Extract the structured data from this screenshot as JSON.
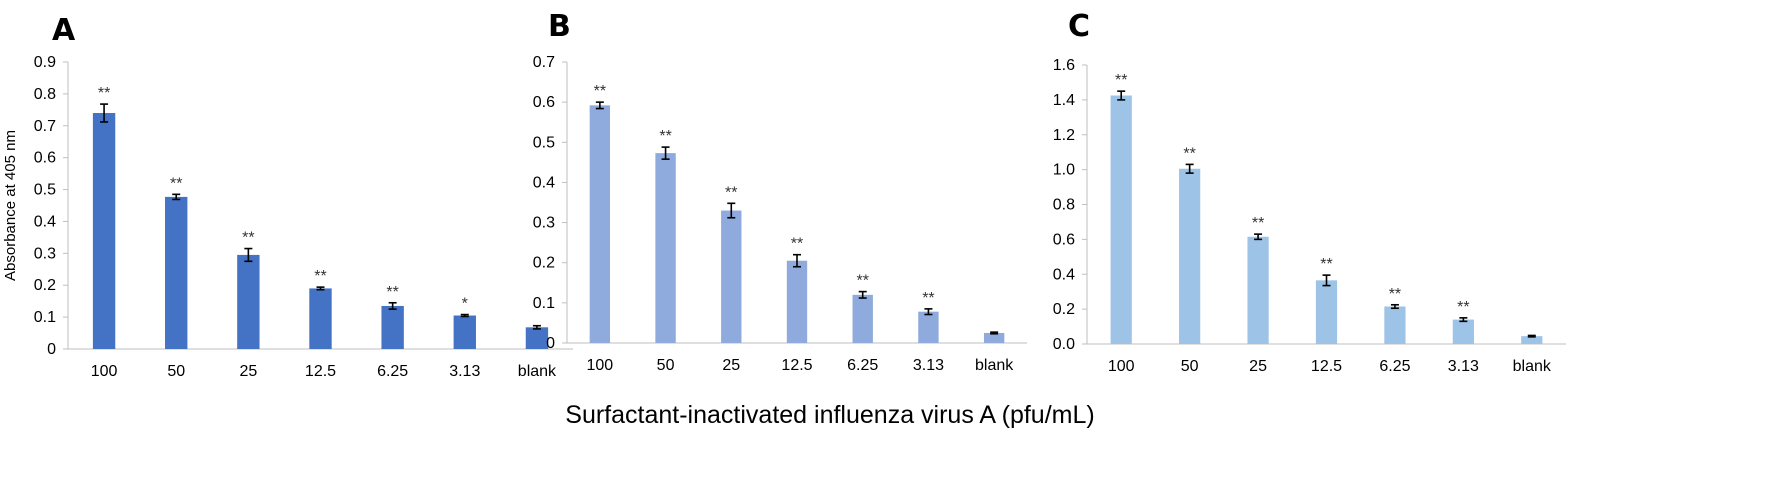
{
  "figure": {
    "xlabel": "Surfactant-inactivated influenza virus A (pfu/mL)"
  },
  "chart_data": [
    {
      "panel": "A",
      "type": "bar",
      "color": "#4472C4",
      "ylabel": "Absorbance at 405 nm",
      "ylim": [
        0,
        0.9
      ],
      "yticks": [
        "0",
        "0.1",
        "0.2",
        "0.3",
        "0.4",
        "0.5",
        "0.6",
        "0.7",
        "0.8",
        "0.9"
      ],
      "categories": [
        "100",
        "50",
        "25",
        "12.5",
        "6.25",
        "3.13",
        "blank"
      ],
      "values": [
        0.74,
        0.477,
        0.295,
        0.19,
        0.135,
        0.105,
        0.068
      ],
      "errors": [
        0.028,
        0.008,
        0.02,
        0.004,
        0.01,
        0.003,
        0.005
      ],
      "significance": [
        "**",
        "**",
        "**",
        "**",
        "**",
        "*",
        ""
      ]
    },
    {
      "panel": "B",
      "type": "bar",
      "color": "#8FAADC",
      "ylabel": "",
      "ylim": [
        0,
        0.7
      ],
      "yticks": [
        "0",
        "0.1",
        "0.2",
        "0.3",
        "0.4",
        "0.5",
        "0.6",
        "0.7"
      ],
      "categories": [
        "100",
        "50",
        "25",
        "12.5",
        "6.25",
        "3.13",
        "blank"
      ],
      "values": [
        0.592,
        0.473,
        0.33,
        0.205,
        0.12,
        0.078,
        0.025
      ],
      "errors": [
        0.008,
        0.015,
        0.018,
        0.015,
        0.008,
        0.007,
        0.002
      ],
      "significance": [
        "**",
        "**",
        "**",
        "**",
        "**",
        "**",
        ""
      ]
    },
    {
      "panel": "C",
      "type": "bar",
      "color": "#9DC3E6",
      "ylabel": "",
      "ylim": [
        0,
        1.6
      ],
      "yticks": [
        "0.0",
        "0.2",
        "0.4",
        "0.6",
        "0.8",
        "1.0",
        "1.2",
        "1.4",
        "1.6"
      ],
      "categories": [
        "100",
        "50",
        "25",
        "12.5",
        "6.25",
        "3.13",
        "blank"
      ],
      "values": [
        1.425,
        1.005,
        0.615,
        0.365,
        0.215,
        0.14,
        0.045
      ],
      "errors": [
        0.025,
        0.025,
        0.015,
        0.03,
        0.01,
        0.01,
        0.004
      ],
      "significance": [
        "**",
        "**",
        "**",
        "**",
        "**",
        "**",
        ""
      ]
    }
  ]
}
